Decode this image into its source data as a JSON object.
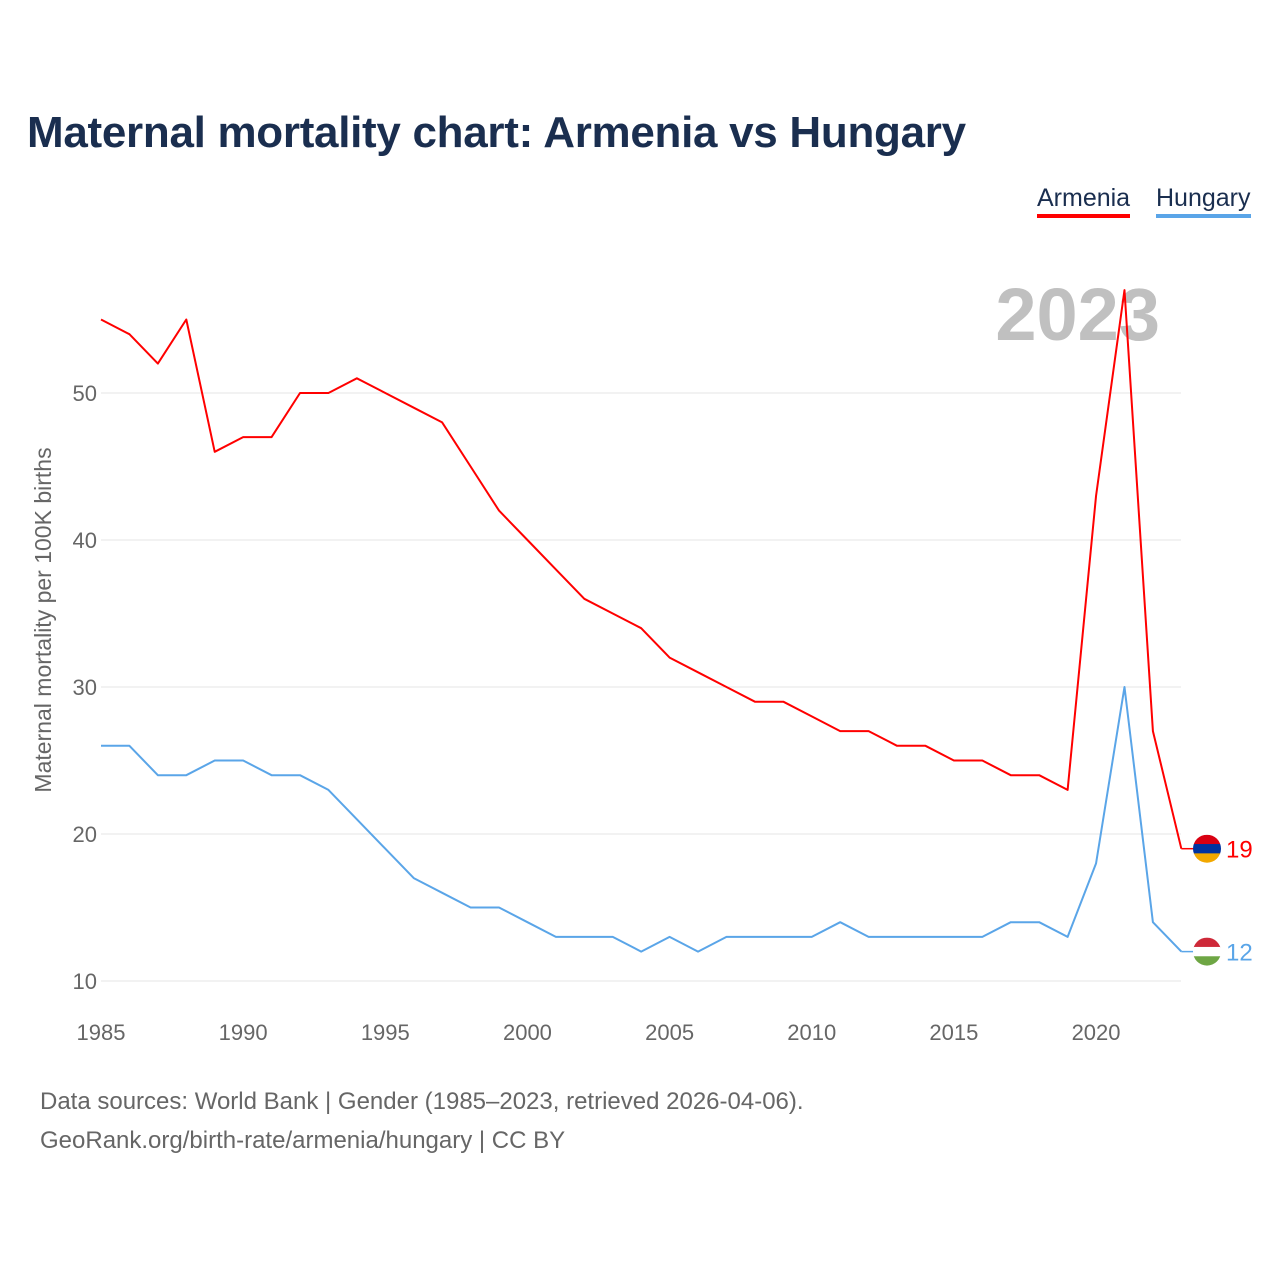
{
  "title": "Maternal mortality chart: Armenia vs Hungary",
  "footer": {
    "line1": "Data sources: World Bank | Gender (1985–2023, retrieved 2026-04-06).",
    "line2": "GeoRank.org/birth-rate/armenia/hungary | CC BY"
  },
  "chart_data": {
    "type": "line",
    "title": "Maternal mortality chart: Armenia vs Hungary",
    "ylabel": "Maternal mortality per 100K births",
    "xlabel": "",
    "year_watermark": "2023",
    "xlim": [
      1985,
      2023
    ],
    "ylim": [
      9,
      58
    ],
    "yticks": [
      "10",
      "20",
      "30",
      "40",
      "50"
    ],
    "xticks": [
      "1985",
      "1990",
      "1995",
      "2000",
      "2005",
      "2010",
      "2015",
      "2020"
    ],
    "grid": true,
    "legend_placement": "top-right",
    "x": [
      1985,
      1986,
      1987,
      1988,
      1989,
      1990,
      1991,
      1992,
      1993,
      1994,
      1995,
      1996,
      1997,
      1998,
      1999,
      2000,
      2001,
      2002,
      2003,
      2004,
      2005,
      2006,
      2007,
      2008,
      2009,
      2010,
      2011,
      2012,
      2013,
      2014,
      2015,
      2016,
      2017,
      2018,
      2019,
      2020,
      2021,
      2022,
      2023
    ],
    "series": [
      {
        "name": "Armenia",
        "color": "#ff0000",
        "end_label": "19",
        "flag": "armenia-flag",
        "values": [
          55,
          54,
          52,
          55,
          46,
          47,
          47,
          50,
          50,
          51,
          50,
          49,
          48,
          45,
          42,
          40,
          38,
          36,
          35,
          34,
          32,
          31,
          30,
          29,
          29,
          28,
          27,
          27,
          26,
          26,
          25,
          25,
          24,
          24,
          23,
          43,
          57,
          27,
          19
        ]
      },
      {
        "name": "Hungary",
        "color": "#5aa5e8",
        "end_label": "12",
        "flag": "hungary-flag",
        "values": [
          26,
          26,
          24,
          24,
          25,
          25,
          24,
          24,
          23,
          21,
          19,
          17,
          16,
          15,
          15,
          14,
          13,
          13,
          13,
          12,
          13,
          12,
          13,
          13,
          13,
          13,
          14,
          13,
          13,
          13,
          13,
          13,
          14,
          14,
          13,
          18,
          30,
          14,
          12
        ]
      }
    ]
  }
}
